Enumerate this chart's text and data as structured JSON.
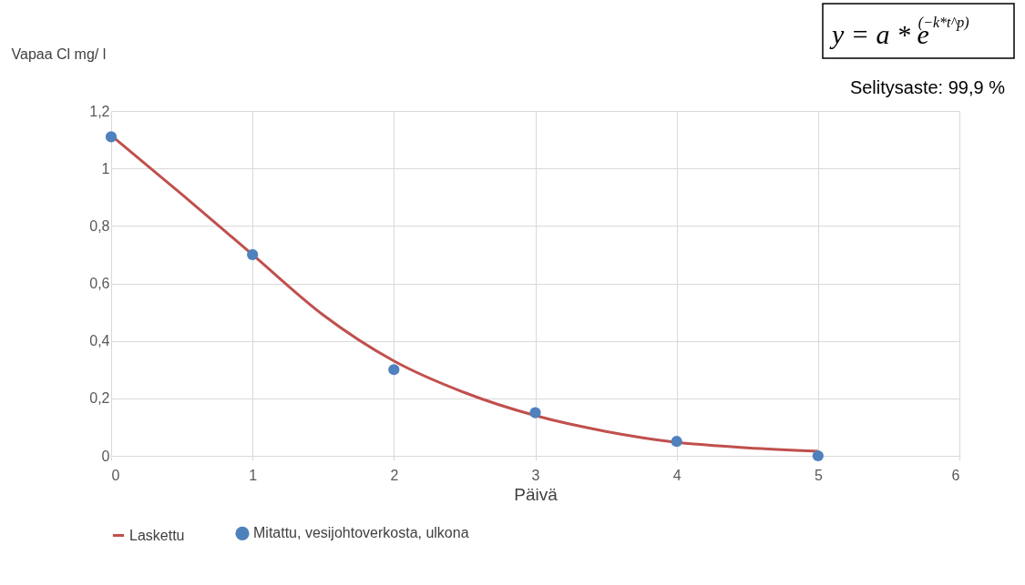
{
  "chart_data": {
    "type": "line",
    "xlabel": "Päivä",
    "ylabel": "Vapaa Cl mg/ l",
    "annotations": [
      "y = a * e$^{(−k*t^p)}$",
      "Selitysaste: 99,9 %"
    ],
    "series": [
      {
        "name": "Laskettu",
        "color": "#c0504d",
        "x": [
          0,
          0.5,
          1,
          1.5,
          2,
          2.5,
          3,
          3.5,
          4,
          4.5,
          5
        ],
        "values": [
          1.115,
          0.91,
          0.7,
          0.49,
          0.33,
          0.22,
          0.14,
          0.085,
          0.047,
          0.028,
          0.016
        ]
      },
      {
        "name": "Mitattu, vesijohtoverkosta, ulkona",
        "type": "scatter",
        "color": "#4f81bd",
        "marker": "circle",
        "x": [
          0,
          1,
          2,
          3,
          4,
          5
        ],
        "values": [
          1.11,
          0.7,
          0.3,
          0.15,
          0.05,
          0.0
        ]
      }
    ],
    "xlim": [
      0,
      6
    ],
    "xticks": [
      0,
      1,
      2,
      3,
      4,
      5,
      6
    ],
    "ylim": [
      0,
      1.2
    ],
    "yticks": [
      0,
      {
        "value": 0.2,
        "label": "0,2"
      },
      {
        "value": 0.4,
        "label": "0,4"
      },
      {
        "value": 0.6,
        "label": "0,6"
      },
      {
        "value": 0.8,
        "label": "0,8"
      },
      1,
      {
        "value": 1.2,
        "label": "1,2"
      }
    ],
    "grid": true,
    "legend": "bottom",
    "line_style": "solid"
  }
}
